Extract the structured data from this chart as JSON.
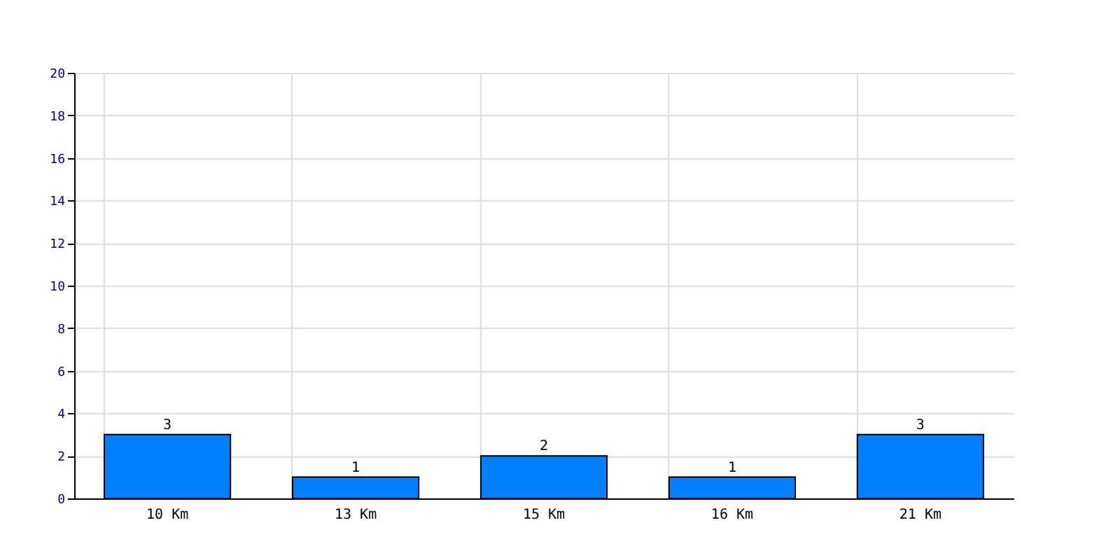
{
  "chart_data": {
    "type": "bar",
    "categories": [
      "10 Km",
      "13 Km",
      "15 Km",
      "16 Km",
      "21 Km"
    ],
    "values": [
      3,
      1,
      2,
      1,
      3
    ],
    "color": "#0080ff",
    "ylim": [
      0,
      20
    ],
    "yticks": [
      0,
      2,
      4,
      6,
      8,
      10,
      12,
      14,
      16,
      18,
      20
    ],
    "grid": true,
    "data_labels": true
  }
}
